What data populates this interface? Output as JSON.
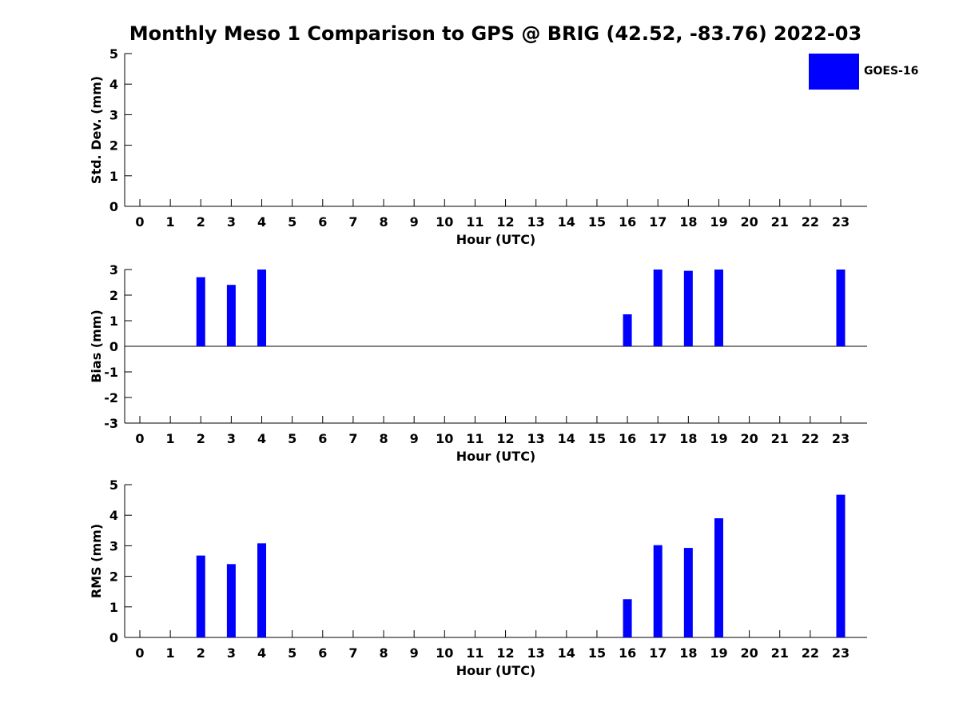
{
  "chart_data": {
    "title": "Monthly Meso 1 Comparison to GPS @ BRIG (42.52, -83.76) 2022-03",
    "legend": {
      "label": "GOES-16",
      "color": "#0000ff",
      "placement": "top-right"
    },
    "panels": [
      {
        "type": "bar",
        "ylabel": "Std. Dev. (mm)",
        "xlabel": "Hour (UTC)",
        "ylim": [
          0,
          5
        ],
        "yticks": [
          "0",
          "1",
          "2",
          "3",
          "4",
          "5"
        ],
        "categories": [
          "0",
          "1",
          "2",
          "3",
          "4",
          "5",
          "6",
          "7",
          "8",
          "9",
          "10",
          "11",
          "12",
          "13",
          "14",
          "15",
          "16",
          "17",
          "18",
          "19",
          "20",
          "21",
          "22",
          "23"
        ],
        "series": [
          {
            "name": "GOES-16",
            "values": [
              null,
              null,
              null,
              null,
              null,
              null,
              null,
              null,
              null,
              null,
              null,
              null,
              null,
              null,
              null,
              null,
              null,
              null,
              null,
              null,
              null,
              null,
              null,
              null
            ]
          }
        ]
      },
      {
        "type": "bar",
        "ylabel": "Bias (mm)",
        "xlabel": "Hour (UTC)",
        "ylim": [
          -3,
          3
        ],
        "yticks": [
          "-3",
          "-2",
          "-1",
          "0",
          "1",
          "2",
          "3"
        ],
        "zero_line": true,
        "categories": [
          "0",
          "1",
          "2",
          "3",
          "4",
          "5",
          "6",
          "7",
          "8",
          "9",
          "10",
          "11",
          "12",
          "13",
          "14",
          "15",
          "16",
          "17",
          "18",
          "19",
          "20",
          "21",
          "22",
          "23"
        ],
        "series": [
          {
            "name": "GOES-16",
            "values": [
              null,
              null,
              2.7,
              2.4,
              3.0,
              null,
              null,
              null,
              null,
              null,
              null,
              null,
              null,
              null,
              null,
              null,
              1.25,
              3.0,
              2.95,
              3.0,
              null,
              null,
              null,
              3.0
            ]
          }
        ]
      },
      {
        "type": "bar",
        "ylabel": "RMS (mm)",
        "xlabel": "Hour (UTC)",
        "ylim": [
          0,
          5
        ],
        "yticks": [
          "0",
          "1",
          "2",
          "3",
          "4",
          "5"
        ],
        "categories": [
          "0",
          "1",
          "2",
          "3",
          "4",
          "5",
          "6",
          "7",
          "8",
          "9",
          "10",
          "11",
          "12",
          "13",
          "14",
          "15",
          "16",
          "17",
          "18",
          "19",
          "20",
          "21",
          "22",
          "23"
        ],
        "series": [
          {
            "name": "GOES-16",
            "values": [
              null,
              null,
              2.68,
              2.4,
              3.08,
              null,
              null,
              null,
              null,
              null,
              null,
              null,
              null,
              null,
              null,
              null,
              1.25,
              3.02,
              2.93,
              3.9,
              null,
              null,
              null,
              4.67
            ]
          }
        ]
      }
    ]
  }
}
